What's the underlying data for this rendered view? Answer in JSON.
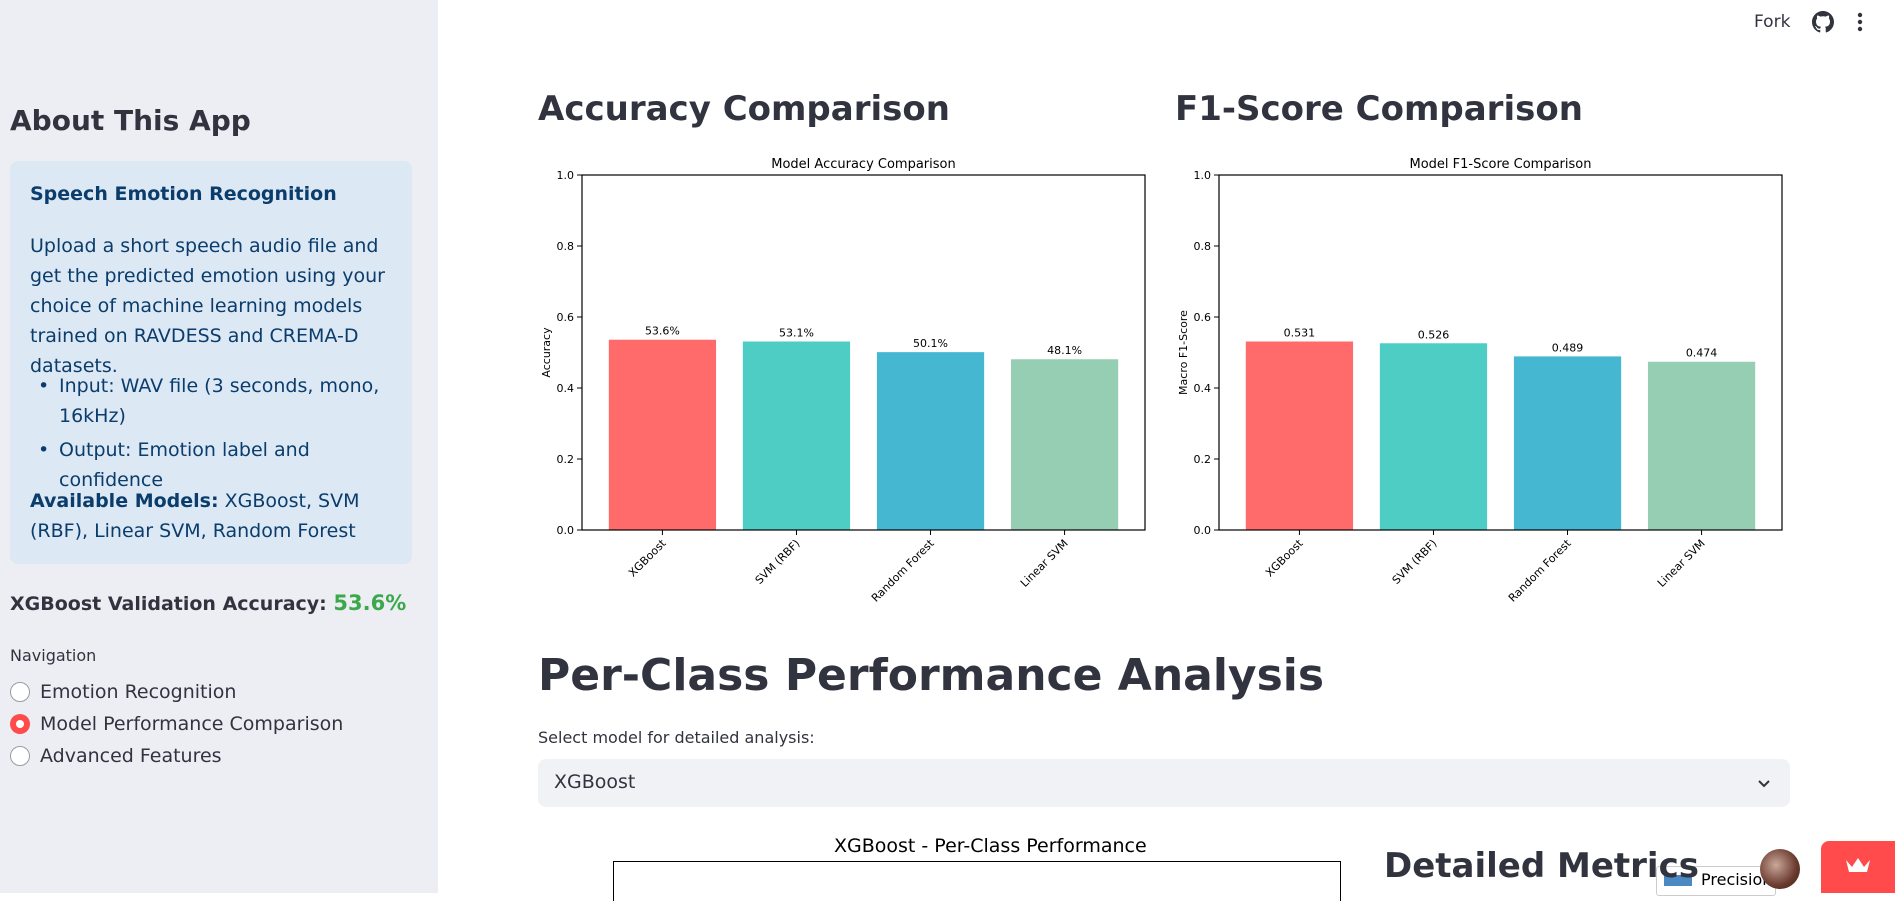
{
  "sidebar": {
    "heading": "About This App",
    "info": {
      "title": "Speech Emotion Recognition",
      "description": "Upload a short speech audio file and get the predicted emotion using your choice of machine learning models trained on RAVDESS and CREMA-D datasets.",
      "bullets": [
        "Input: WAV file (3 seconds, mono, 16kHz)",
        "Output: Emotion label and confidence"
      ],
      "models_label": "Available Models:",
      "models_value": "XGBoost, SVM (RBF), Linear SVM, Random Forest"
    },
    "validation_label": "XGBoost Validation Accuracy:",
    "validation_value": "53.6%",
    "nav_label": "Navigation",
    "nav_items": [
      {
        "label": "Emotion Recognition",
        "selected": false
      },
      {
        "label": "Model Performance Comparison",
        "selected": true
      },
      {
        "label": "Advanced Features",
        "selected": false
      }
    ]
  },
  "topbar": {
    "fork_label": "Fork",
    "github_icon": "github-icon",
    "menu_icon": "kebab-menu-icon"
  },
  "main": {
    "accuracy_heading": "Accuracy Comparison",
    "f1_heading": "F1-Score Comparison",
    "per_class_heading": "Per-Class Performance Analysis",
    "select_label": "Select model for detailed analysis:",
    "select_value": "XGBoost",
    "per_class_chart_title": "XGBoost - Per-Class Performance",
    "legend_first": "Precision",
    "detailed_heading": "Detailed Metrics"
  },
  "colors": {
    "accent": "#ff4b4b",
    "bar_colors": [
      "#ff6b6b",
      "#4ecdc4",
      "#45b7d1",
      "#96ceb4"
    ],
    "success": "#3aa84b",
    "info_bg": "#dde8f5",
    "info_text": "#0a3d6b"
  },
  "chart_data": [
    {
      "type": "bar",
      "title": "Model Accuracy Comparison",
      "xlabel": "",
      "ylabel": "Accuracy",
      "categories": [
        "XGBoost",
        "SVM (RBF)",
        "Random Forest",
        "Linear SVM"
      ],
      "values": [
        0.536,
        0.531,
        0.501,
        0.481
      ],
      "data_labels": [
        "53.6%",
        "53.1%",
        "50.1%",
        "48.1%"
      ],
      "ylim": [
        0,
        1.0
      ],
      "yticks": [
        "0.0",
        "0.2",
        "0.4",
        "0.6",
        "0.8",
        "1.0"
      ],
      "grid": false
    },
    {
      "type": "bar",
      "title": "Model F1-Score Comparison",
      "xlabel": "",
      "ylabel": "Macro F1-Score",
      "categories": [
        "XGBoost",
        "SVM (RBF)",
        "Random Forest",
        "Linear SVM"
      ],
      "values": [
        0.531,
        0.526,
        0.489,
        0.474
      ],
      "data_labels": [
        "0.531",
        "0.526",
        "0.489",
        "0.474"
      ],
      "ylim": [
        0,
        1.0
      ],
      "yticks": [
        "0.0",
        "0.2",
        "0.4",
        "0.6",
        "0.8",
        "1.0"
      ],
      "grid": false
    }
  ]
}
